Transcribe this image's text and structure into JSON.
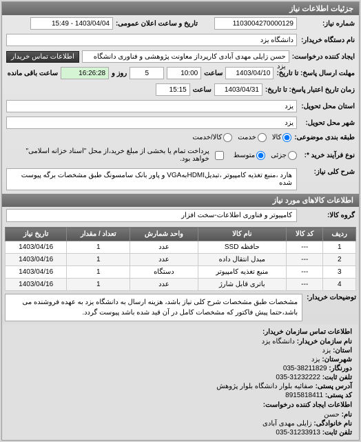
{
  "panel_title": "جزئیات اطلاعات نیاز",
  "fields": {
    "request_no_label": "شماره نیاز:",
    "request_no": "1103004270000129",
    "announce_label": "تاریخ و ساعت اعلان عمومی:",
    "announce_value": "1403/04/04 - 15:49",
    "buyer_label": "نام دستگاه خریدار:",
    "buyer_value": "دانشگاه یزد",
    "creator_label": "ایجاد کننده درخواست:",
    "creator_value": "حسن زایلی مهدی آبادی کارپرداز معاونت پژوهشی و فناوری دانشگاه یزد",
    "contact_btn": "اطلاعات تماس خریدار",
    "deadline_label": "مهلت ارسال پاسخ: تا تاریخ:",
    "deadline_date": "1403/04/10",
    "time_label": "ساعت",
    "deadline_time": "10:00",
    "remain_day_value": "5",
    "remain_day_label": "روز و",
    "remain_time": "16:26:28",
    "remain_label": "ساعت باقی مانده",
    "credit_label": "زمان تاریخ اعتبار پاسخ: تا تاریخ:",
    "credit_date": "1403/04/31",
    "credit_time": "15:15",
    "province_label": "استان محل تحویل:",
    "province_value": "یزد",
    "city_label": "شهر محل تحویل:",
    "city_value": "یزد",
    "budget_type_label": "طبقه بندی موضوعی:",
    "r_goods": "کالا",
    "r_service": "خدمت",
    "r_both": "کالا/خدمت",
    "process_label": "نوع فرآیند خرید *:",
    "r_small": "جزئی",
    "r_medium": "متوسط",
    "payment_note": "پرداخت تمام یا بخشی از مبلغ خرید،از محل \"اسناد خزانه اسلامی\" خواهد بود.",
    "title_label": "شرح کلی نیاز:",
    "title_value": "هارد ،منبع تغذیه کامپیوتر ،تبدیلHDMIبهVGA و پاور بانک سامسونگ طبق مشخصات برگه پیوست شده",
    "items_section": "اطلاعات کالاهای مورد نیاز",
    "group_label": "گروه کالا:",
    "group_value": "کامپیوتر و فناوری اطلاعات-سخت افزار",
    "desc_label": "توضیحات خریدار:",
    "desc_value": "مشخصات طبق مشخصات شرح کلی نیاز باشد، هزینه ارسال به دانشگاه یزد به عهده فروشنده می باشد،حتما پیش فاکتور که مشخصات کامل در آن قید شده باشد پیوست گردد."
  },
  "table": {
    "headers": [
      "ردیف",
      "کد کالا",
      "نام کالا",
      "واحد شمارش",
      "تعداد / مقدار",
      "تاریخ نیاز"
    ],
    "rows": [
      [
        "1",
        "---",
        "حافظه SSD",
        "عدد",
        "1",
        "1403/04/16"
      ],
      [
        "2",
        "---",
        "مبدل انتقال داده",
        "عدد",
        "1",
        "1403/04/16"
      ],
      [
        "3",
        "---",
        "منبع تغذیه کامپیوتر",
        "دستگاه",
        "1",
        "1403/04/16"
      ],
      [
        "4",
        "---",
        "باتری قابل شارژ",
        "عدد",
        "1",
        "1403/04/16"
      ]
    ]
  },
  "contact": {
    "section_title": "اطلاعات تماس سازمان خریدار:",
    "org_label": "نام سازمان خریدار:",
    "org_value": "دانشگاه یزد",
    "province_label": "استان:",
    "province_value": "یزد",
    "city_label": "شهرستان:",
    "city_value": "یزد",
    "fax_label": "دورنگار:",
    "fax_value": "38211829-035",
    "phone_label": "تلفن ثابت:",
    "phone_value": "31232222-035",
    "address_label": "آدرس پستی:",
    "address_value": "صفائیه بلوار دانشگاه بلوار پژوهش",
    "postal_label": "کد پستی:",
    "postal_value": "8915818411",
    "creator_section": "اطلاعات ایجاد کننده درخواست:",
    "name_label": "نام:",
    "name_value": "حسن",
    "lname_label": "نام خانوادگی:",
    "lname_value": "زایلی مهدی آبادی",
    "tel_label": "تلفن ثابت:",
    "tel_value": "31233913-035"
  }
}
